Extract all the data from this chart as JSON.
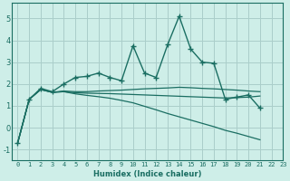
{
  "xlabel": "Humidex (Indice chaleur)",
  "ylabel": "",
  "background_color": "#ceeee8",
  "grid_color": "#aaceca",
  "line_color": "#1a6e62",
  "xlim": [
    -0.5,
    23
  ],
  "ylim": [
    -1.5,
    5.7
  ],
  "yticks": [
    -1,
    0,
    1,
    2,
    3,
    4,
    5
  ],
  "xticks": [
    0,
    1,
    2,
    3,
    4,
    5,
    6,
    7,
    8,
    9,
    10,
    11,
    12,
    13,
    14,
    15,
    16,
    17,
    18,
    19,
    20,
    21,
    22,
    23
  ],
  "series": [
    {
      "x": [
        0,
        1,
        2,
        3,
        4,
        5,
        6,
        7,
        8,
        9,
        10,
        11,
        12,
        13,
        14,
        15,
        16,
        17,
        18,
        19,
        20,
        21,
        22
      ],
      "y": [
        -0.7,
        1.3,
        1.8,
        1.65,
        2.0,
        2.3,
        2.35,
        2.5,
        2.3,
        2.15,
        3.75,
        2.5,
        2.3,
        3.8,
        5.1,
        3.6,
        3.0,
        2.95,
        1.3,
        1.4,
        1.5,
        0.9,
        null
      ],
      "marker": "+",
      "markersize": 4,
      "lw": 1.0
    },
    {
      "x": [
        0,
        1,
        2,
        3,
        4,
        5,
        6,
        7,
        8,
        9,
        10,
        11,
        12,
        13,
        14,
        15,
        16,
        17,
        18,
        19,
        20,
        21,
        22
      ],
      "y": [
        -0.7,
        1.3,
        1.75,
        1.62,
        1.68,
        1.65,
        1.65,
        1.68,
        1.7,
        1.72,
        1.75,
        1.78,
        1.8,
        1.82,
        1.85,
        1.83,
        1.8,
        1.78,
        1.75,
        1.72,
        1.68,
        1.65,
        null
      ],
      "marker": null,
      "markersize": 0,
      "lw": 0.9
    },
    {
      "x": [
        0,
        1,
        2,
        3,
        4,
        5,
        6,
        7,
        8,
        9,
        10,
        11,
        12,
        13,
        14,
        15,
        16,
        17,
        18,
        19,
        20,
        21,
        22
      ],
      "y": [
        -0.7,
        1.3,
        1.75,
        1.62,
        1.65,
        1.6,
        1.58,
        1.57,
        1.56,
        1.54,
        1.52,
        1.5,
        1.48,
        1.46,
        1.44,
        1.42,
        1.4,
        1.38,
        1.36,
        1.38,
        1.4,
        1.45,
        null
      ],
      "marker": null,
      "markersize": 0,
      "lw": 0.9
    },
    {
      "x": [
        0,
        1,
        2,
        3,
        4,
        5,
        6,
        7,
        8,
        9,
        10,
        11,
        12,
        13,
        14,
        15,
        16,
        17,
        18,
        19,
        20,
        21,
        22
      ],
      "y": [
        -0.7,
        1.3,
        1.75,
        1.62,
        1.65,
        1.55,
        1.48,
        1.42,
        1.35,
        1.25,
        1.14,
        0.98,
        0.82,
        0.65,
        0.5,
        0.35,
        0.2,
        0.05,
        -0.12,
        -0.25,
        -0.4,
        -0.55,
        null
      ],
      "marker": null,
      "markersize": 0,
      "lw": 0.9
    }
  ]
}
